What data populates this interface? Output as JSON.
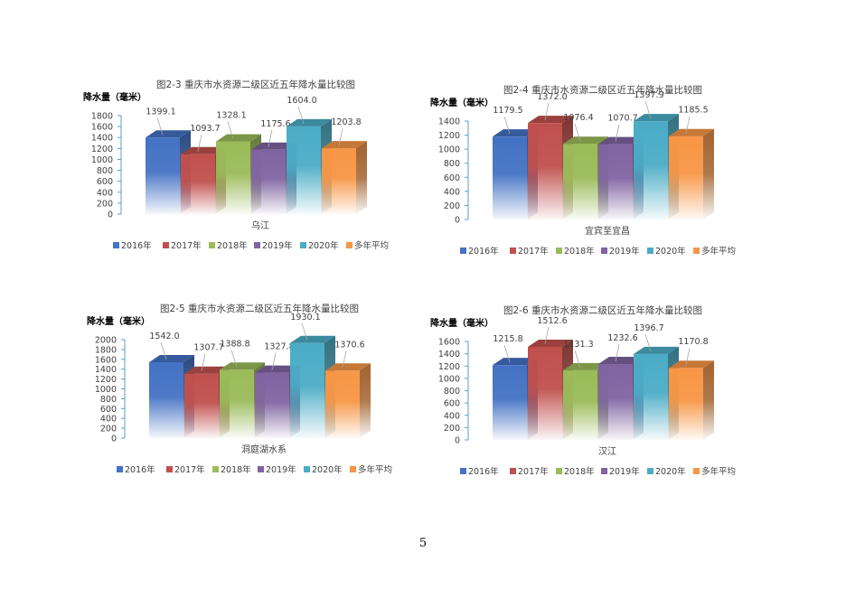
{
  "page": {
    "number": "5"
  },
  "legend_labels": [
    "2016年",
    "2017年",
    "2018年",
    "2019年",
    "2020年",
    "多年平均"
  ],
  "colors": {
    "series": [
      "#4472C4",
      "#C0504D",
      "#9BBB59",
      "#8064A2",
      "#4BACC6",
      "#F79646"
    ],
    "axis": "#5B9BD5",
    "text": "#404040"
  },
  "chart_data": [
    {
      "type": "bar",
      "title": "图2-3 重庆市水资源二级区近五年降水量比较图",
      "ylabel": "降水量（毫米）",
      "category": "乌江",
      "series": [
        {
          "name": "2016年",
          "value": 1399.1,
          "label": "1399.1"
        },
        {
          "name": "2017年",
          "value": 1093.7,
          "label": "1093.7"
        },
        {
          "name": "2018年",
          "value": 1328.1,
          "label": "1328.1"
        },
        {
          "name": "2019年",
          "value": 1175.6,
          "label": "1175.6"
        },
        {
          "name": "2020年",
          "value": 1604.0,
          "label": "1604.0"
        },
        {
          "name": "多年平均",
          "value": 1203.8,
          "label": "1203.8"
        }
      ],
      "ylim": [
        0,
        1800
      ],
      "yticks": [
        "0",
        "200",
        "400",
        "600",
        "800",
        "1000",
        "1200",
        "1400",
        "1600",
        "1800"
      ],
      "legend": "bottom"
    },
    {
      "type": "bar",
      "title": "图2-4 重庆市水资源二级区近五年降水量比较图",
      "ylabel": "降水量（毫米）",
      "category": "宜宾至宜昌",
      "series": [
        {
          "name": "2016年",
          "value": 1179.5,
          "label": "1179.5"
        },
        {
          "name": "2017年",
          "value": 1372.0,
          "label": "1372.0"
        },
        {
          "name": "2018年",
          "value": 1076.4,
          "label": "1076.4"
        },
        {
          "name": "2019年",
          "value": 1070.7,
          "label": "1070.7"
        },
        {
          "name": "2020年",
          "value": 1397.9,
          "label": "1397.9"
        },
        {
          "name": "多年平均",
          "value": 1185.5,
          "label": "1185.5"
        }
      ],
      "ylim": [
        0,
        1400
      ],
      "yticks": [
        "0",
        "200",
        "400",
        "600",
        "800",
        "1000",
        "1200",
        "1400"
      ],
      "legend": "bottom"
    },
    {
      "type": "bar",
      "title": "图2-5 重庆市水资源二级区近五年降水量比较图",
      "ylabel": "降水量（毫米）",
      "category": "洞庭湖水系",
      "series": [
        {
          "name": "2016年",
          "value": 1542.0,
          "label": "1542.0"
        },
        {
          "name": "2017年",
          "value": 1307.7,
          "label": "1307.7"
        },
        {
          "name": "2018年",
          "value": 1388.8,
          "label": "1388.8"
        },
        {
          "name": "2019年",
          "value": 1327.8,
          "label": "1327.8"
        },
        {
          "name": "2020年",
          "value": 1930.1,
          "label": "1930.1"
        },
        {
          "name": "多年平均",
          "value": 1370.6,
          "label": "1370.6"
        }
      ],
      "ylim": [
        0,
        2000
      ],
      "yticks": [
        "0",
        "200",
        "400",
        "600",
        "800",
        "1000",
        "1200",
        "1400",
        "1600",
        "1800",
        "2000"
      ],
      "legend": "bottom"
    },
    {
      "type": "bar",
      "title": "图2-6 重庆市水资源二级区近五年降水量比较图",
      "ylabel": "降水量（毫米）",
      "category": "汉江",
      "series": [
        {
          "name": "2016年",
          "value": 1215.8,
          "label": "1215.8"
        },
        {
          "name": "2017年",
          "value": 1512.6,
          "label": "1512.6"
        },
        {
          "name": "2018年",
          "value": 1131.3,
          "label": "1131.3"
        },
        {
          "name": "2019年",
          "value": 1232.6,
          "label": "1232.6"
        },
        {
          "name": "2020年",
          "value": 1396.7,
          "label": "1396.7"
        },
        {
          "name": "多年平均",
          "value": 1170.8,
          "label": "1170.8"
        }
      ],
      "ylim": [
        0,
        1600
      ],
      "yticks": [
        "0",
        "200",
        "400",
        "600",
        "800",
        "1000",
        "1200",
        "1400",
        "1600"
      ],
      "legend": "bottom"
    }
  ]
}
